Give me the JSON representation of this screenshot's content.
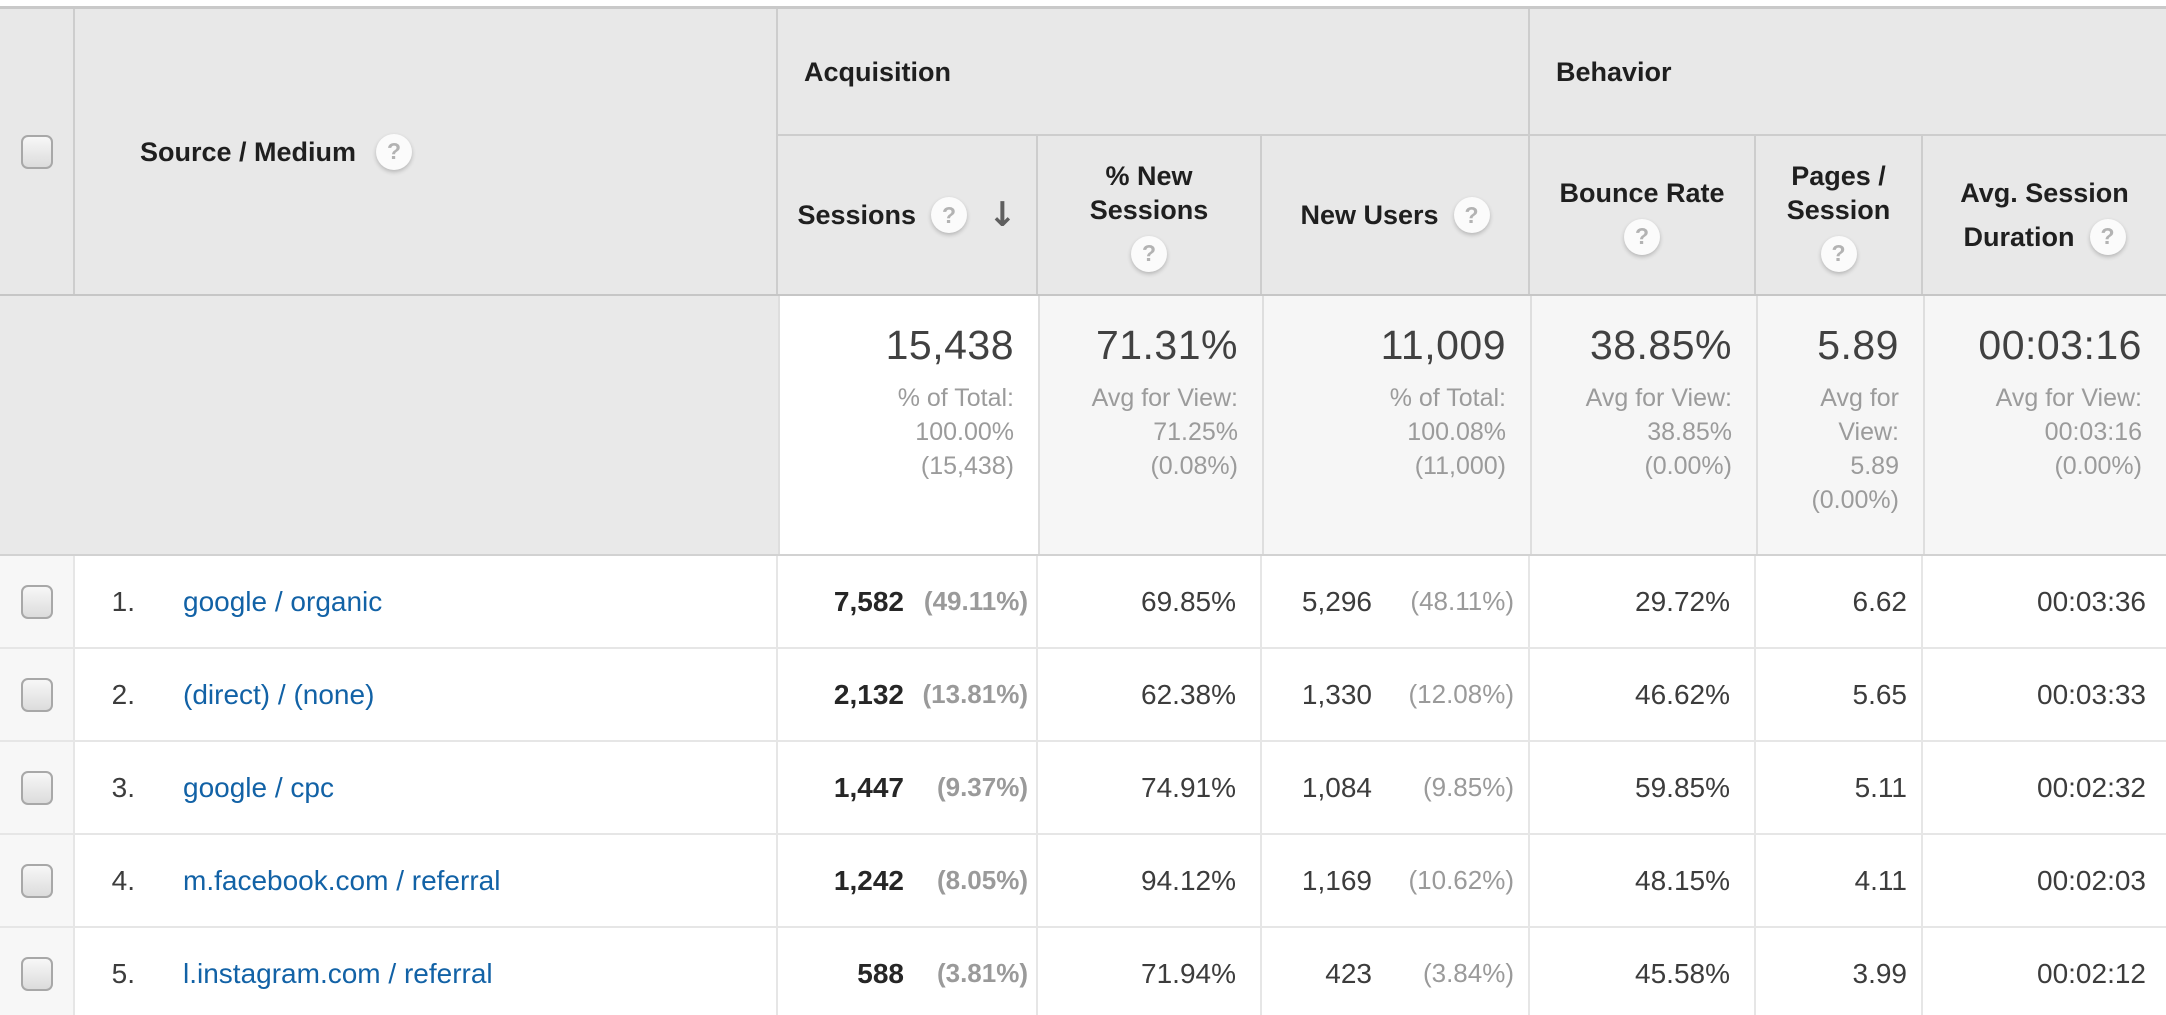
{
  "icons": {
    "help": "?",
    "sort_desc": "↓"
  },
  "header": {
    "dimension": "Source / Medium",
    "groups": {
      "acquisition": "Acquisition",
      "behavior": "Behavior"
    },
    "metrics": {
      "sessions": "Sessions",
      "new_sessions_l1": "% New",
      "new_sessions_l2": "Sessions",
      "new_users": "New Users",
      "bounce_rate": "Bounce Rate",
      "pages_l1": "Pages /",
      "pages_l2": "Session",
      "avg_dur_l1": "Avg. Session",
      "avg_dur_l2": "Duration"
    }
  },
  "totals": {
    "sessions": {
      "value": "15,438",
      "sub": [
        "% of Total:",
        "100.00%",
        "(15,438)"
      ]
    },
    "new_sessions": {
      "value": "71.31%",
      "sub": [
        "Avg for View:",
        "71.25%",
        "(0.08%)"
      ]
    },
    "new_users": {
      "value": "11,009",
      "sub": [
        "% of Total:",
        "100.08%",
        "(11,000)"
      ]
    },
    "bounce_rate": {
      "value": "38.85%",
      "sub": [
        "Avg for View:",
        "38.85%",
        "(0.00%)"
      ]
    },
    "pages_session": {
      "value": "5.89",
      "sub": [
        "Avg for",
        "View:",
        "5.89",
        "(0.00%)"
      ]
    },
    "avg_duration": {
      "value": "00:03:16",
      "sub": [
        "Avg for View:",
        "00:03:16",
        "(0.00%)"
      ]
    }
  },
  "rows": [
    {
      "index": "1.",
      "source": "google / organic",
      "sessions": "7,582",
      "sessions_pct": "(49.11%)",
      "new_sessions": "69.85%",
      "new_users": "5,296",
      "new_users_pct": "(48.11%)",
      "bounce_rate": "29.72%",
      "pages_session": "6.62",
      "avg_duration": "00:03:36"
    },
    {
      "index": "2.",
      "source": "(direct) / (none)",
      "sessions": "2,132",
      "sessions_pct": "(13.81%)",
      "new_sessions": "62.38%",
      "new_users": "1,330",
      "new_users_pct": "(12.08%)",
      "bounce_rate": "46.62%",
      "pages_session": "5.65",
      "avg_duration": "00:03:33"
    },
    {
      "index": "3.",
      "source": "google / cpc",
      "sessions": "1,447",
      "sessions_pct": "(9.37%)",
      "new_sessions": "74.91%",
      "new_users": "1,084",
      "new_users_pct": "(9.85%)",
      "bounce_rate": "59.85%",
      "pages_session": "5.11",
      "avg_duration": "00:02:32"
    },
    {
      "index": "4.",
      "source": "m.facebook.com / referral",
      "sessions": "1,242",
      "sessions_pct": "(8.05%)",
      "new_sessions": "94.12%",
      "new_users": "1,169",
      "new_users_pct": "(10.62%)",
      "bounce_rate": "48.15%",
      "pages_session": "4.11",
      "avg_duration": "00:02:03"
    },
    {
      "index": "5.",
      "source": "l.instagram.com / referral",
      "sessions": "588",
      "sessions_pct": "(3.81%)",
      "new_sessions": "71.94%",
      "new_users": "423",
      "new_users_pct": "(3.84%)",
      "bounce_rate": "45.58%",
      "pages_session": "3.99",
      "avg_duration": "00:02:12"
    }
  ],
  "colors": {
    "link": "#1262a6",
    "header_bg": "#e8e8e8",
    "totals_cell_bg": "#f6f6f6",
    "sorted_cell_bg": "#ffffff"
  }
}
